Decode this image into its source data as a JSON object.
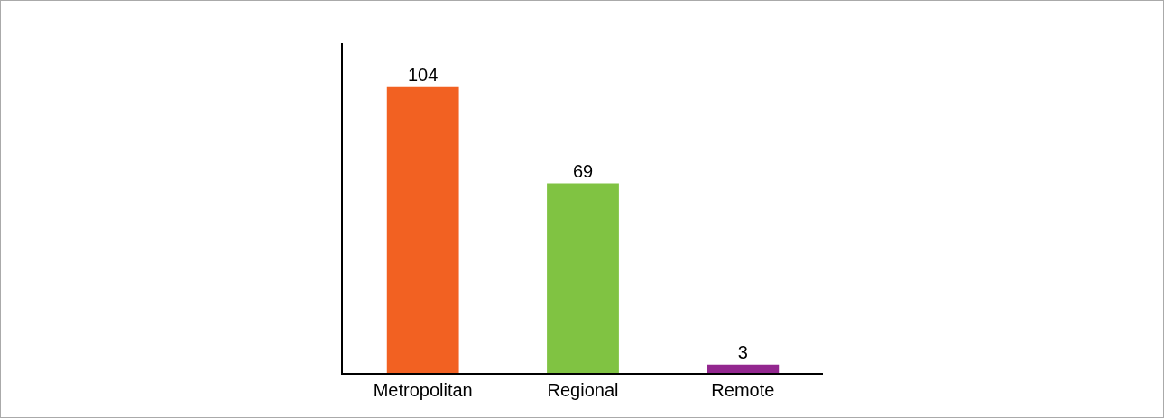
{
  "chart_data": {
    "type": "bar",
    "categories": [
      "Metropolitan",
      "Regional",
      "Remote"
    ],
    "values": [
      104,
      69,
      3
    ],
    "colors": [
      "#f26122",
      "#80c342",
      "#93278f"
    ],
    "ylim": [
      0,
      120
    ],
    "data_labels": true,
    "legend": false,
    "tick_labels": "x"
  }
}
